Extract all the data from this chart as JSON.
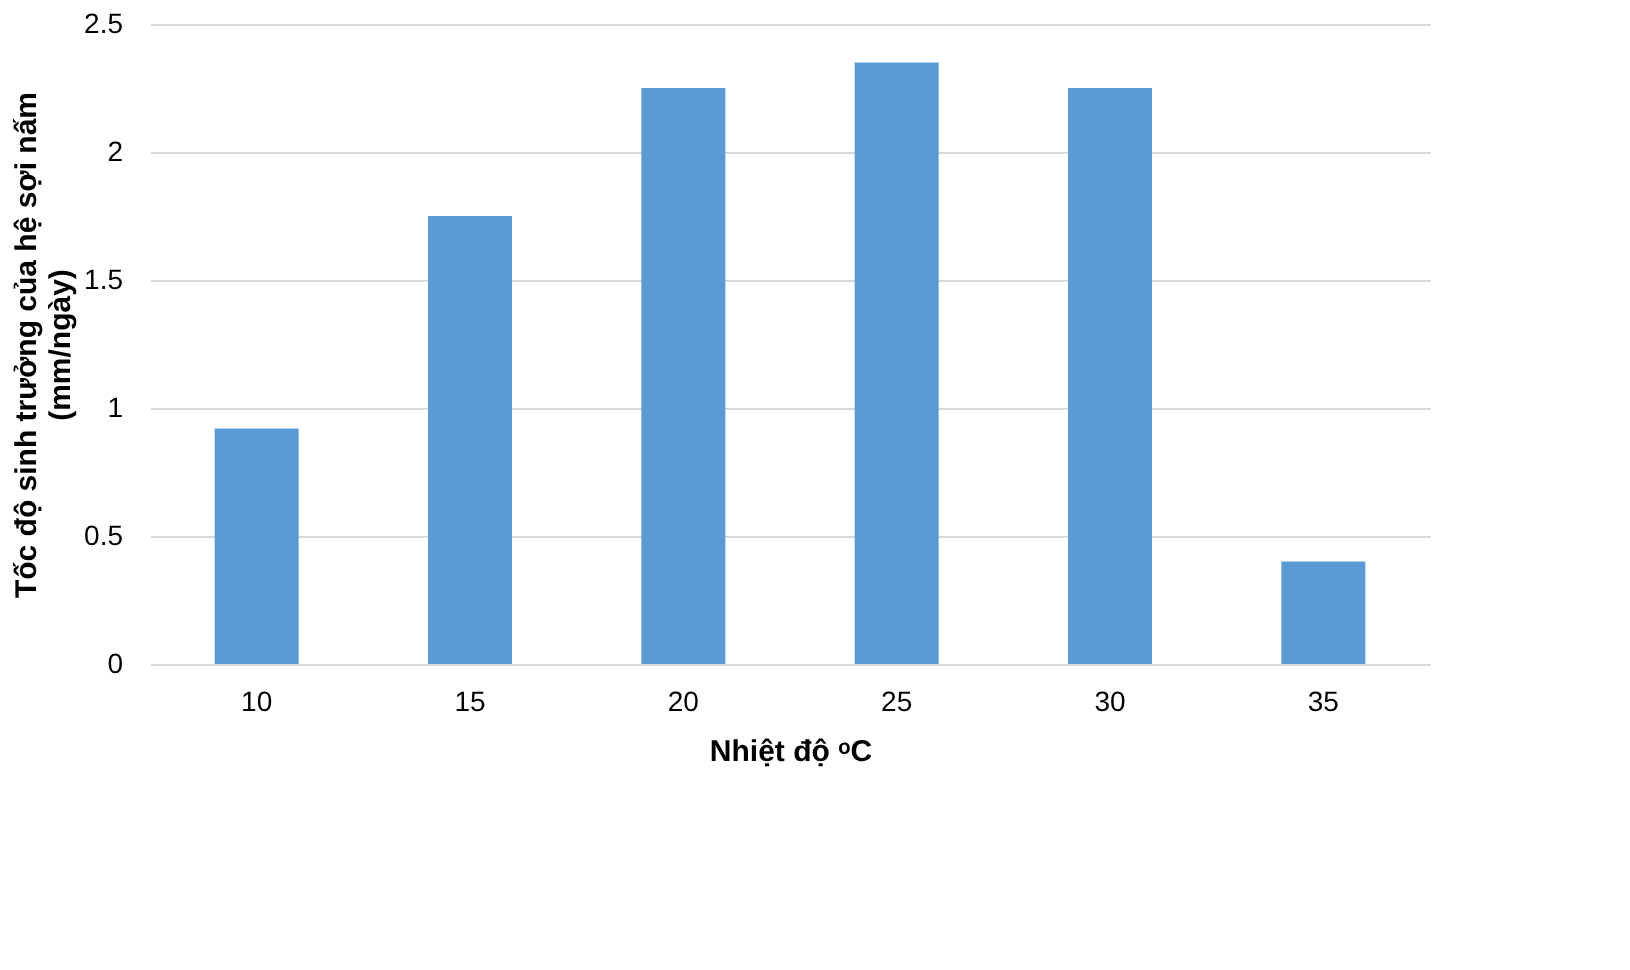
{
  "chart_data": {
    "type": "bar",
    "categories": [
      "10",
      "15",
      "20",
      "25",
      "30",
      "35"
    ],
    "values": [
      0.92,
      1.75,
      2.25,
      2.35,
      2.25,
      0.4
    ],
    "color": "#5b9bd5",
    "xlabel": "Nhiệt độ ᵒC",
    "ylabel": "Tốc độ sinh trưởng của hệ sợi nấm\n(mm/ngày)",
    "ylim": [
      0,
      2.5
    ],
    "yticks": [
      0,
      0.5,
      1,
      1.5,
      2,
      2.5
    ],
    "grid": "y"
  }
}
